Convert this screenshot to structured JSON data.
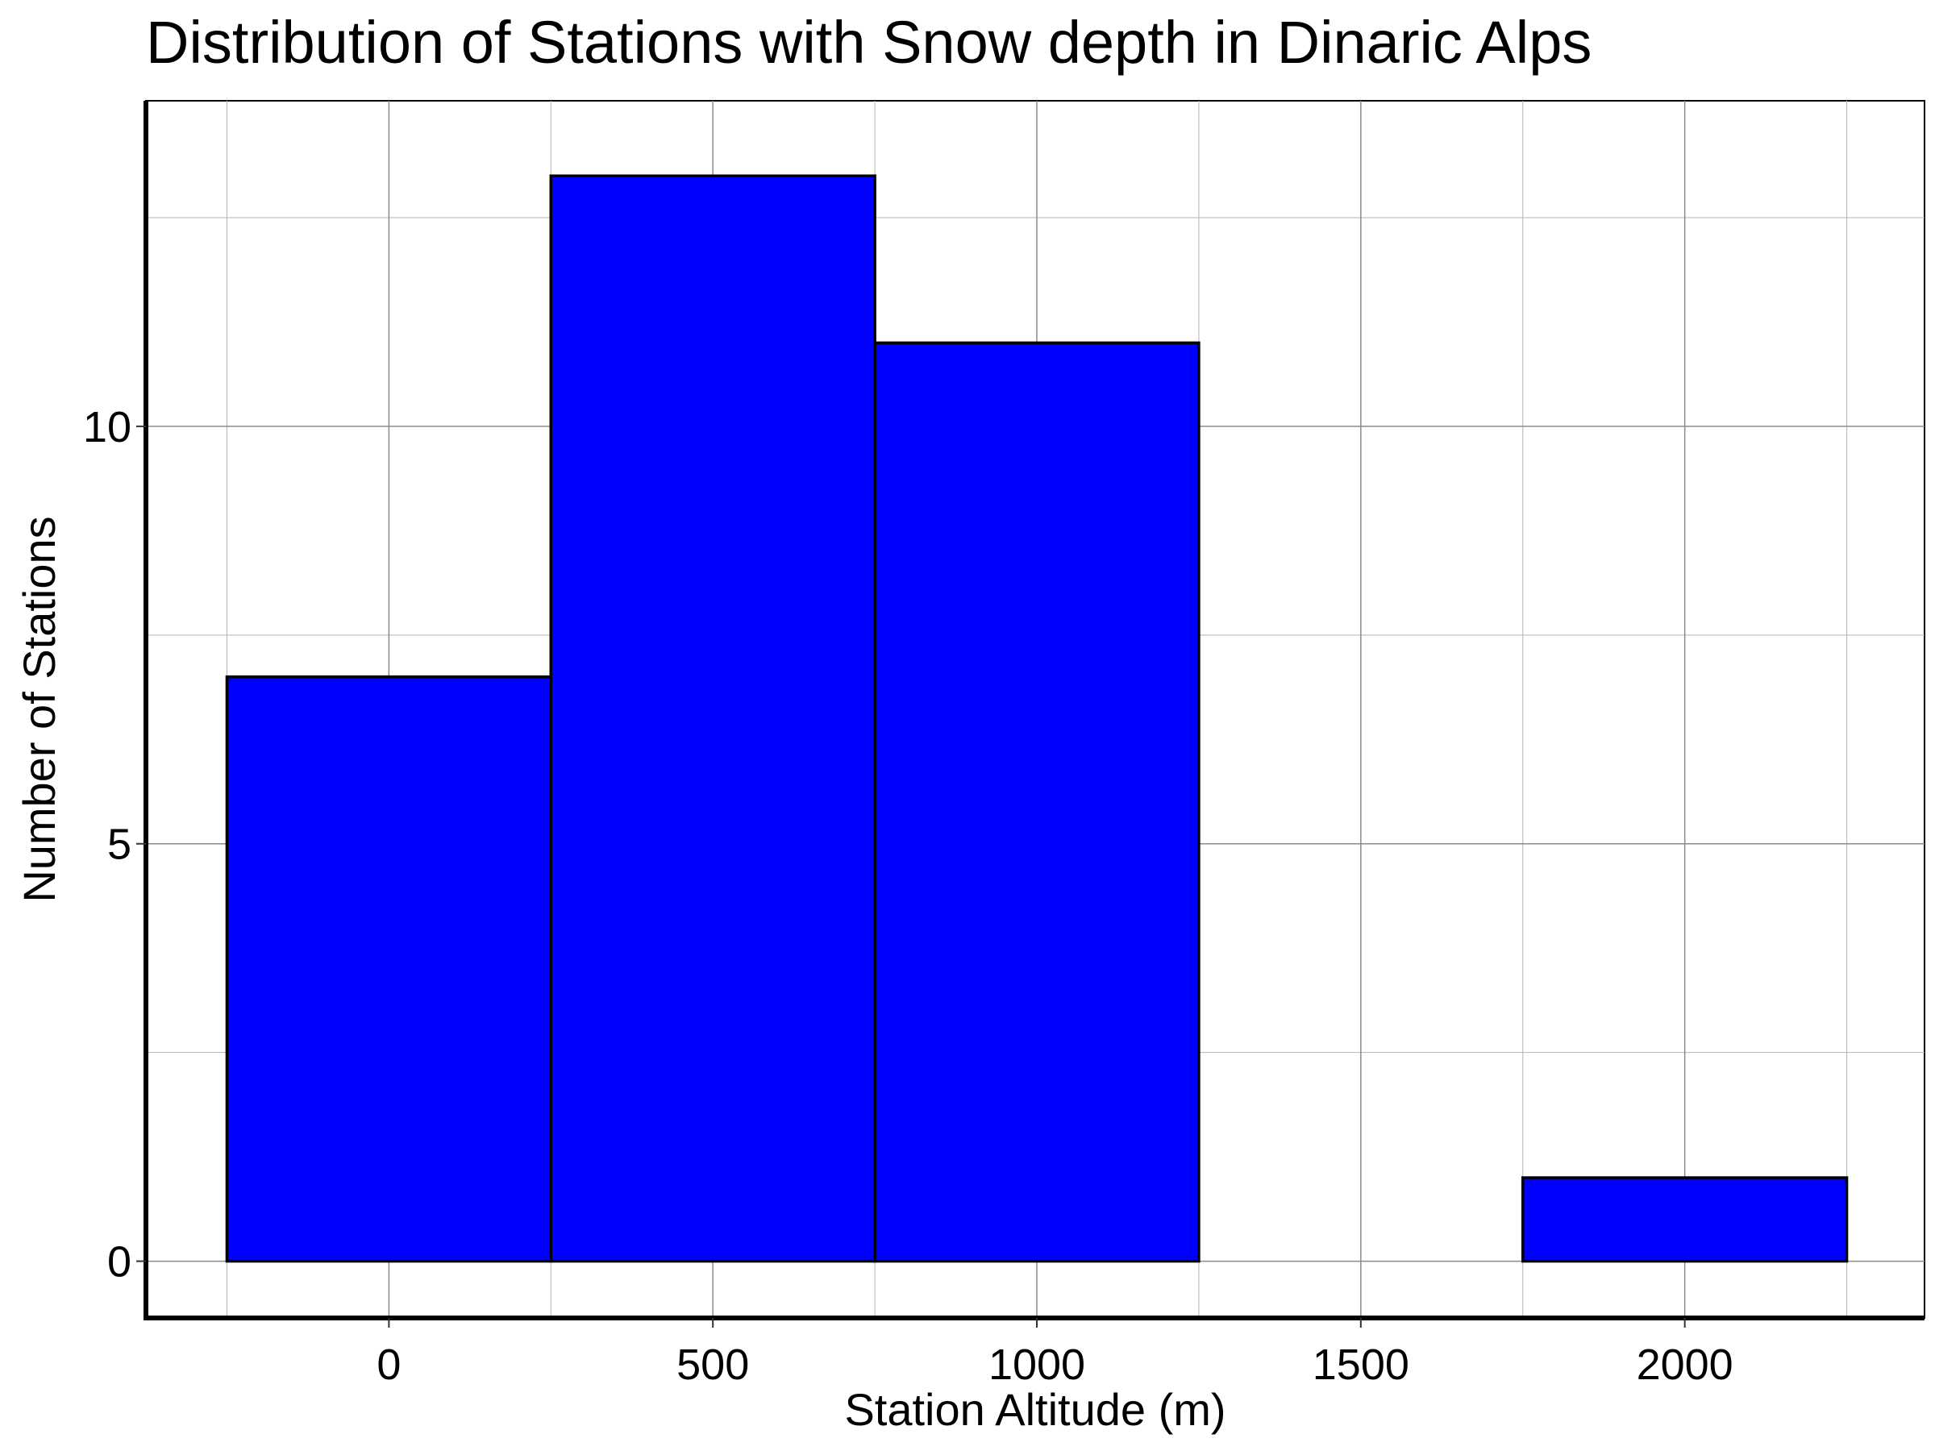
{
  "chart_data": {
    "type": "bar",
    "title": "Distribution of Stations with Snow depth in Dinaric Alps",
    "xlabel": "Station Altitude (m)",
    "ylabel": "Number of Stations",
    "bins": [
      {
        "x_start": -250,
        "x_end": 250,
        "value": 7
      },
      {
        "x_start": 250,
        "x_end": 750,
        "value": 13
      },
      {
        "x_start": 750,
        "x_end": 1250,
        "value": 11
      },
      {
        "x_start": 1250,
        "x_end": 1750,
        "value": 0
      },
      {
        "x_start": 1750,
        "x_end": 2250,
        "value": 1
      }
    ],
    "xlim": [
      -375,
      2370
    ],
    "ylim": [
      -0.68,
      13.9
    ],
    "x_ticks": [
      0,
      500,
      1000,
      1500,
      2000
    ],
    "x_tick_labels": [
      "0",
      "500",
      "1000",
      "1500",
      "2000"
    ],
    "x_minor_gridlines": [
      -250,
      250,
      750,
      1250,
      1750,
      2250
    ],
    "y_ticks": [
      0,
      5,
      10
    ],
    "y_tick_labels": [
      "0",
      "5",
      "10"
    ],
    "y_minor_gridlines": [
      2.5,
      7.5,
      12.5
    ],
    "grid": true,
    "legend": "none",
    "bar_fill_color": "#0000ff",
    "bar_edge_color": "#000000",
    "grid_color": "#b3b3b3",
    "axis_color": "#000000"
  }
}
